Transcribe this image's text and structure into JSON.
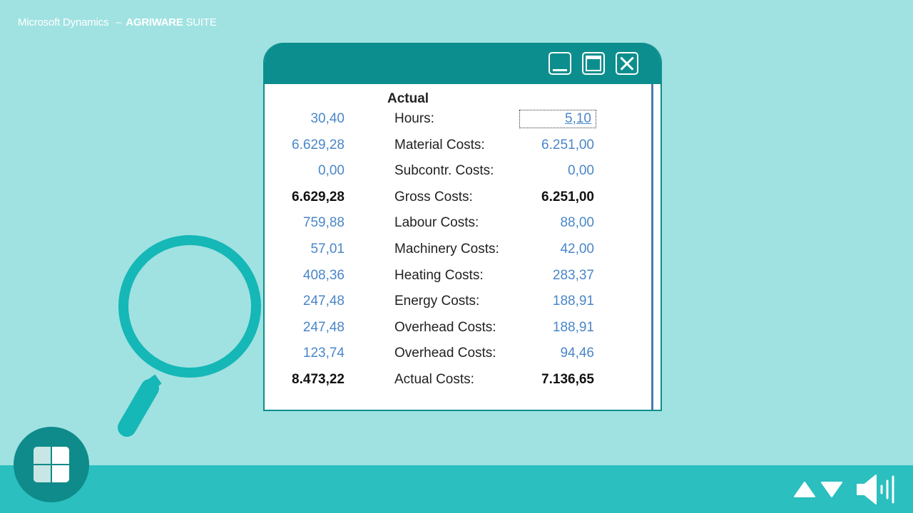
{
  "brand": {
    "part1": "Microsoft Dynamics",
    "dash": "–",
    "part2": "AGRIWARE",
    "part3": "SUITE"
  },
  "window": {
    "column_header": "Actual",
    "focused_row": 0,
    "rows": [
      {
        "left": "30,40",
        "label": "Hours:",
        "right": "5,10",
        "bold": false
      },
      {
        "left": "6.629,28",
        "label": "Material Costs:",
        "right": "6.251,00",
        "bold": false
      },
      {
        "left": "0,00",
        "label": "Subcontr. Costs:",
        "right": "0,00",
        "bold": false
      },
      {
        "left": "6.629,28",
        "label": "Gross Costs:",
        "right": "6.251,00",
        "bold": true
      },
      {
        "left": "759,88",
        "label": "Labour Costs:",
        "right": "88,00",
        "bold": false
      },
      {
        "left": "57,01",
        "label": "Machinery Costs:",
        "right": "42,00",
        "bold": false
      },
      {
        "left": "408,36",
        "label": "Heating Costs:",
        "right": "283,37",
        "bold": false
      },
      {
        "left": "247,48",
        "label": "Energy Costs:",
        "right": "188,91",
        "bold": false
      },
      {
        "left": "247,48",
        "label": "Overhead Costs:",
        "right": "188,91",
        "bold": false
      },
      {
        "left": "123,74",
        "label": "Overhead Costs:",
        "right": "94,46",
        "bold": false
      },
      {
        "left": "8.473,22",
        "label": "Actual Costs:",
        "right": "7.136,65",
        "bold": true
      }
    ]
  },
  "icons": {
    "minimize": "minimize-icon",
    "maximize": "maximize-icon",
    "close": "close-icon",
    "magnifier": "magnifier-icon",
    "index": "index-icon",
    "prev": "triangle-up-icon",
    "next": "triangle-down-icon",
    "audio": "speaker-icon"
  },
  "colors": {
    "background": "#a0e2e1",
    "titlebar": "#0d8e8e",
    "bottombar": "#2bbfbf",
    "link_value": "#4a86c8",
    "magnifier": "#15b7b7"
  }
}
